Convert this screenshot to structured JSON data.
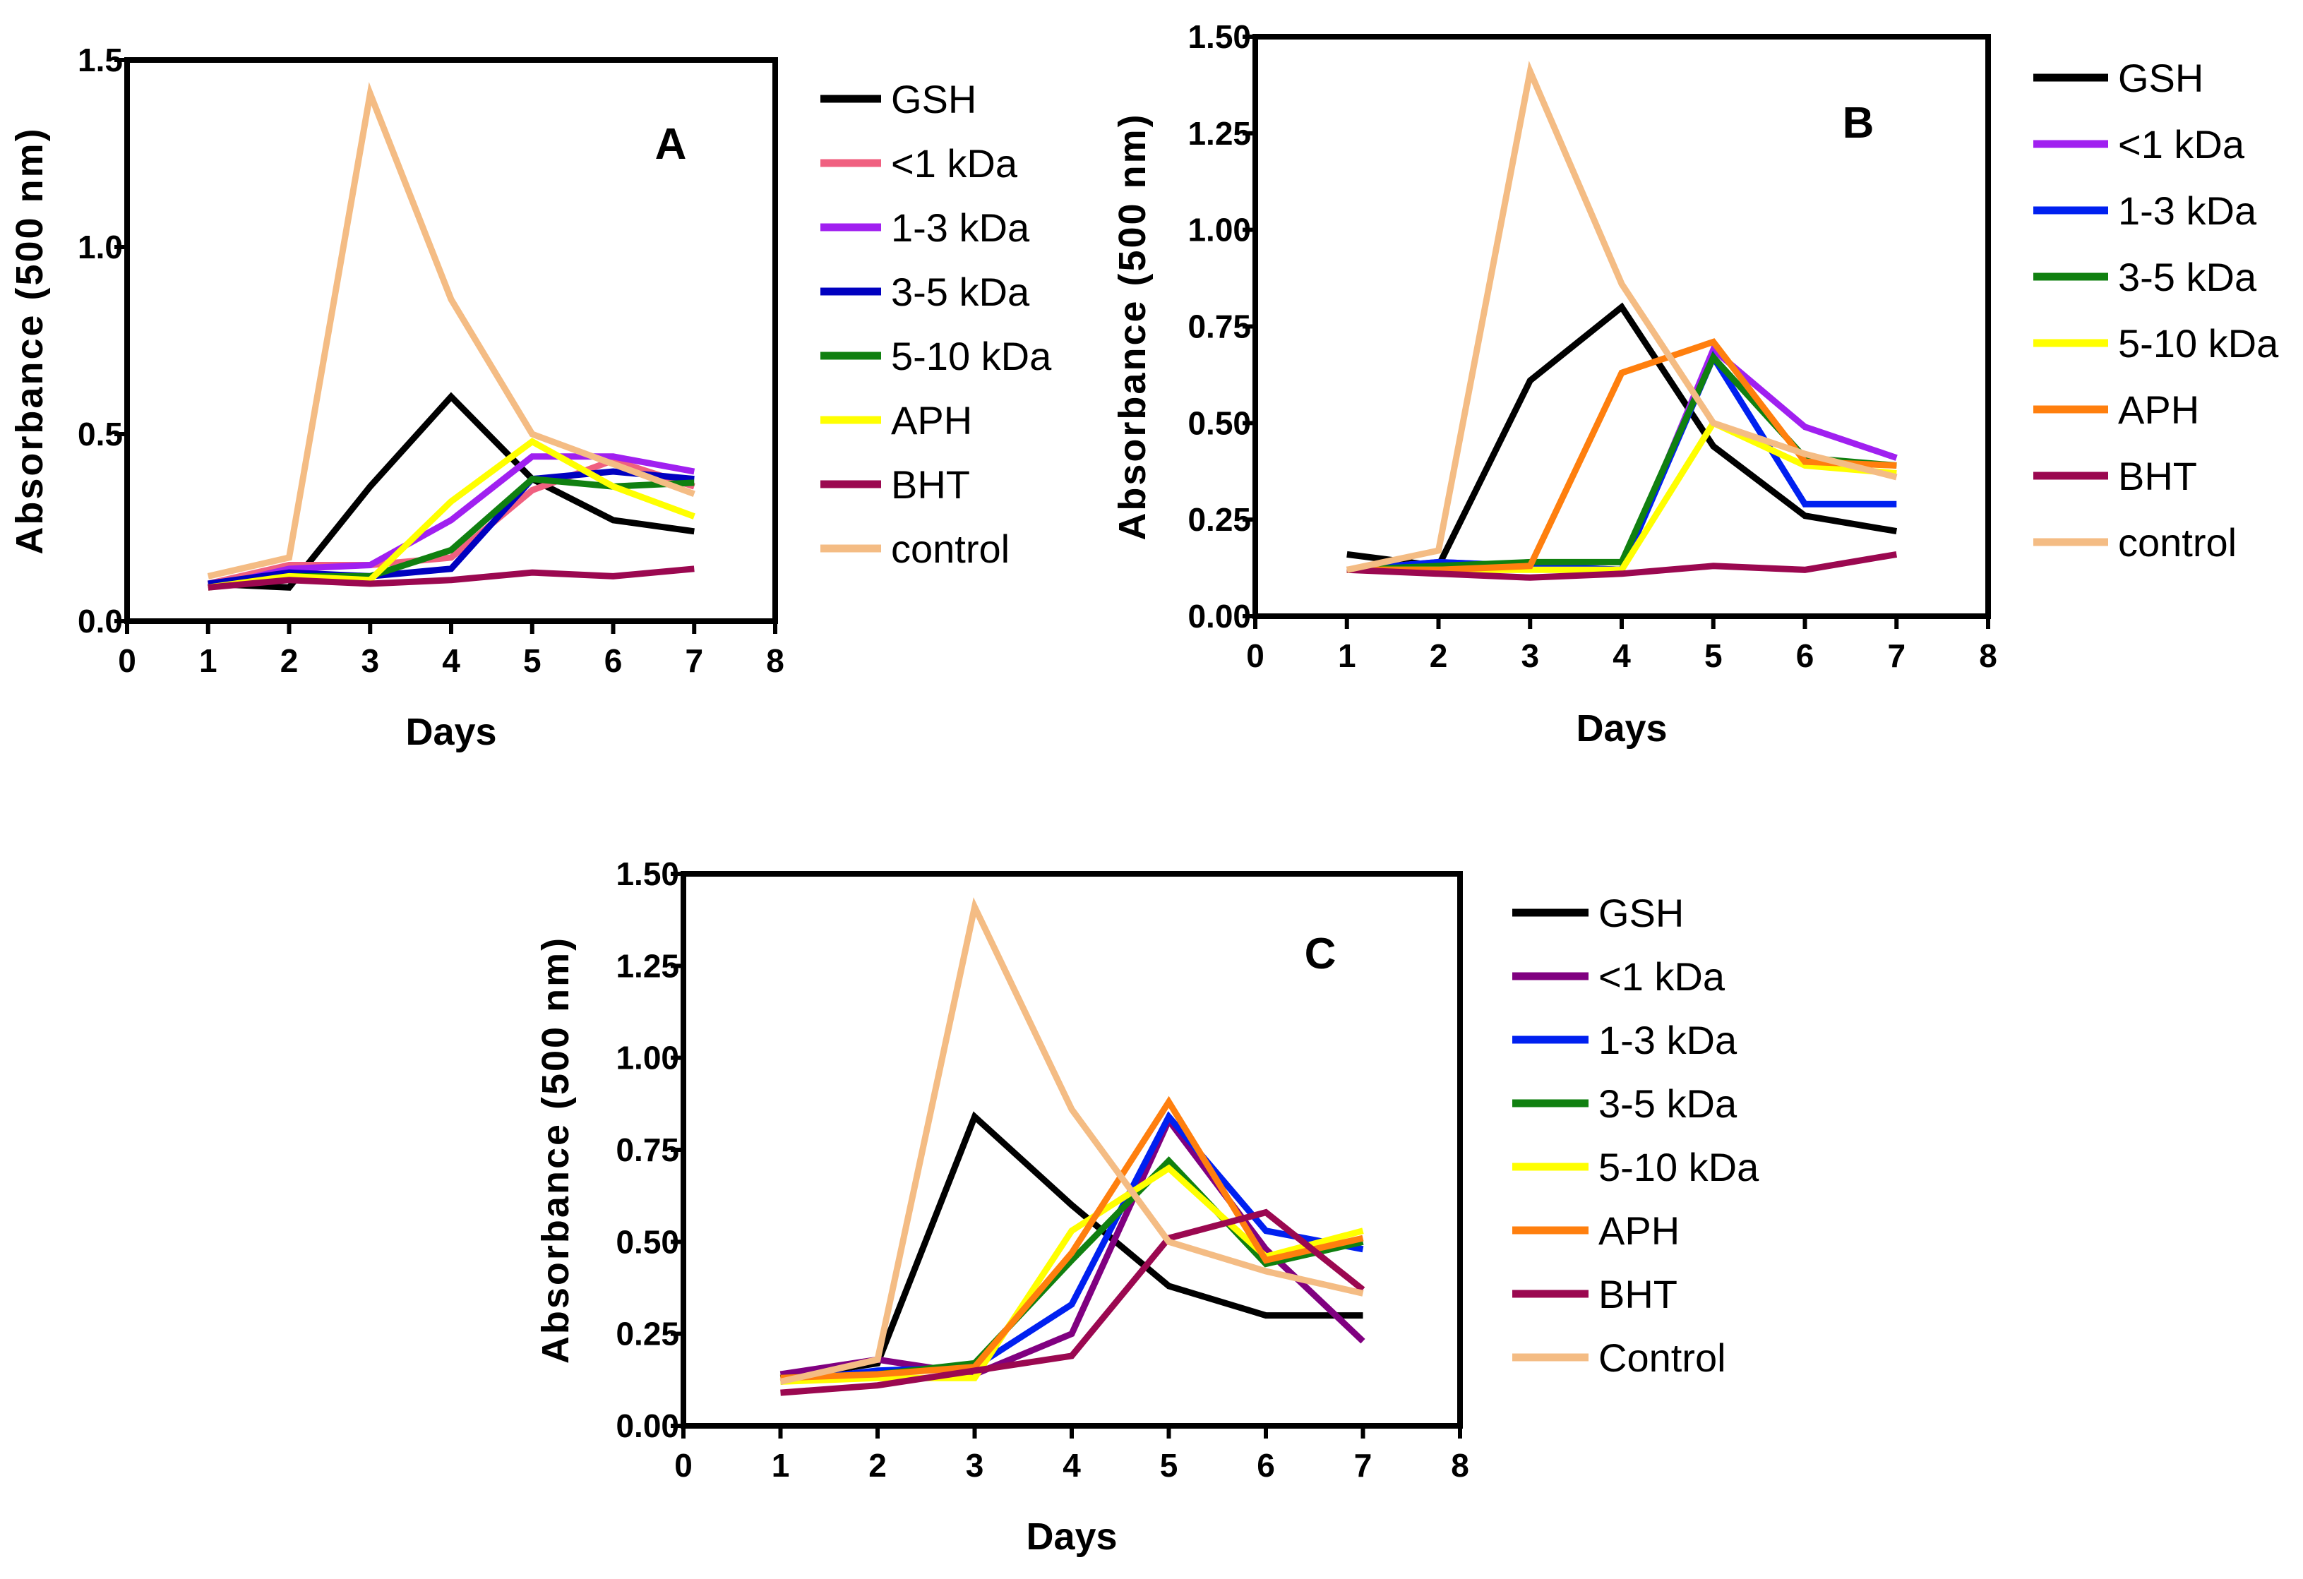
{
  "chart_data": [
    {
      "type": "line",
      "panel": "A",
      "xlabel": "Days",
      "ylabel": "Absorbance (500 nm)",
      "xlim": [
        0,
        8
      ],
      "ylim": [
        0,
        1.5
      ],
      "x_ticks": [
        "0",
        "1",
        "2",
        "3",
        "4",
        "5",
        "6",
        "7",
        "8"
      ],
      "y_ticks": [
        {
          "value": 0.0,
          "label": "0.0"
        },
        {
          "value": 0.5,
          "label": "0.5"
        },
        {
          "value": 1.0,
          "label": "1.0"
        },
        {
          "value": 1.5,
          "label": "1.5"
        }
      ],
      "x": [
        1,
        2,
        3,
        4,
        5,
        6,
        7
      ],
      "legend_position": "right",
      "series": [
        {
          "name": "GSH",
          "color": "#000000",
          "values": [
            0.1,
            0.09,
            0.36,
            0.6,
            0.38,
            0.27,
            0.24
          ]
        },
        {
          "name": "<1 kDa",
          "color": "#F06080",
          "values": [
            0.1,
            0.15,
            0.15,
            0.17,
            0.35,
            0.43,
            0.36
          ]
        },
        {
          "name": "1-3 kDa",
          "color": "#A020F0",
          "values": [
            0.09,
            0.14,
            0.15,
            0.27,
            0.44,
            0.44,
            0.4
          ]
        },
        {
          "name": "3-5 kDa",
          "color": "#0000C0",
          "values": [
            0.1,
            0.13,
            0.12,
            0.14,
            0.38,
            0.4,
            0.38
          ]
        },
        {
          "name": "5-10 kDa",
          "color": "#108010",
          "values": [
            0.09,
            0.12,
            0.12,
            0.19,
            0.38,
            0.36,
            0.37
          ]
        },
        {
          "name": "APH",
          "color": "#FFFF00",
          "values": [
            0.09,
            0.12,
            0.11,
            0.32,
            0.48,
            0.36,
            0.28
          ]
        },
        {
          "name": "BHT",
          "color": "#9B0850",
          "values": [
            0.09,
            0.11,
            0.1,
            0.11,
            0.13,
            0.12,
            0.14
          ]
        },
        {
          "name": "control",
          "color": "#F4BC84",
          "values": [
            0.12,
            0.17,
            1.41,
            0.86,
            0.5,
            0.42,
            0.34
          ]
        }
      ]
    },
    {
      "type": "line",
      "panel": "B",
      "xlabel": "Days",
      "ylabel": "Absorbance (500 nm)",
      "xlim": [
        0,
        8
      ],
      "ylim": [
        0,
        1.5
      ],
      "x_ticks": [
        "0",
        "1",
        "2",
        "3",
        "4",
        "5",
        "6",
        "7",
        "8"
      ],
      "y_ticks": [
        {
          "value": 0.0,
          "label": "0.00"
        },
        {
          "value": 0.25,
          "label": "0.25"
        },
        {
          "value": 0.5,
          "label": "0.50"
        },
        {
          "value": 0.75,
          "label": "0.75"
        },
        {
          "value": 1.0,
          "label": "1.00"
        },
        {
          "value": 1.25,
          "label": "1.25"
        },
        {
          "value": 1.5,
          "label": "1.50"
        }
      ],
      "x": [
        1,
        2,
        3,
        4,
        5,
        6,
        7
      ],
      "legend_position": "right",
      "series": [
        {
          "name": "GSH",
          "color": "#000000",
          "values": [
            0.16,
            0.13,
            0.61,
            0.8,
            0.44,
            0.26,
            0.22
          ]
        },
        {
          "name": "<1 kDa",
          "color": "#A020F0",
          "values": [
            0.12,
            0.14,
            0.13,
            0.12,
            0.69,
            0.49,
            0.41
          ]
        },
        {
          "name": "1-3 kDa",
          "color": "#0020F0",
          "values": [
            0.12,
            0.14,
            0.13,
            0.12,
            0.67,
            0.29,
            0.29
          ]
        },
        {
          "name": "3-5 kDa",
          "color": "#108010",
          "values": [
            0.12,
            0.13,
            0.14,
            0.14,
            0.67,
            0.41,
            0.39
          ]
        },
        {
          "name": "5-10 kDa",
          "color": "#FFFF00",
          "values": [
            0.12,
            0.12,
            0.12,
            0.12,
            0.5,
            0.39,
            0.37
          ]
        },
        {
          "name": "APH",
          "color": "#FF7F0E",
          "values": [
            0.12,
            0.12,
            0.13,
            0.63,
            0.71,
            0.4,
            0.39
          ]
        },
        {
          "name": "BHT",
          "color": "#9B0850",
          "values": [
            0.12,
            0.11,
            0.1,
            0.11,
            0.13,
            0.12,
            0.16
          ]
        },
        {
          "name": "control",
          "color": "#F4BC84",
          "values": [
            0.12,
            0.17,
            1.41,
            0.86,
            0.5,
            0.42,
            0.36
          ]
        }
      ]
    },
    {
      "type": "line",
      "panel": "C",
      "xlabel": "Days",
      "ylabel": "Absorbance (500 nm)",
      "xlim": [
        0,
        8
      ],
      "ylim": [
        0,
        1.5
      ],
      "x_ticks": [
        "0",
        "1",
        "2",
        "3",
        "4",
        "5",
        "6",
        "7",
        "8"
      ],
      "y_ticks": [
        {
          "value": 0.0,
          "label": "0.00"
        },
        {
          "value": 0.25,
          "label": "0.25"
        },
        {
          "value": 0.5,
          "label": "0.50"
        },
        {
          "value": 0.75,
          "label": "0.75"
        },
        {
          "value": 1.0,
          "label": "1.00"
        },
        {
          "value": 1.25,
          "label": "1.25"
        },
        {
          "value": 1.5,
          "label": "1.50"
        }
      ],
      "x": [
        1,
        2,
        3,
        4,
        5,
        6,
        7
      ],
      "legend_position": "right",
      "series": [
        {
          "name": "GSH",
          "color": "#000000",
          "values": [
            0.13,
            0.17,
            0.84,
            0.6,
            0.38,
            0.3,
            0.3
          ]
        },
        {
          "name": "<1 kDa",
          "color": "#800080",
          "values": [
            0.14,
            0.18,
            0.14,
            0.25,
            0.83,
            0.48,
            0.23
          ]
        },
        {
          "name": "1-3 kDa",
          "color": "#0020F0",
          "values": [
            0.12,
            0.15,
            0.16,
            0.33,
            0.84,
            0.53,
            0.48
          ]
        },
        {
          "name": "3-5 kDa",
          "color": "#108010",
          "values": [
            0.13,
            0.14,
            0.17,
            0.45,
            0.72,
            0.44,
            0.5
          ]
        },
        {
          "name": "5-10 kDa",
          "color": "#FFFF00",
          "values": [
            0.12,
            0.13,
            0.13,
            0.53,
            0.7,
            0.46,
            0.53
          ]
        },
        {
          "name": "APH",
          "color": "#FF7F0E",
          "values": [
            0.13,
            0.14,
            0.16,
            0.47,
            0.88,
            0.45,
            0.51
          ]
        },
        {
          "name": "BHT",
          "color": "#9B0850",
          "values": [
            0.09,
            0.11,
            0.15,
            0.19,
            0.51,
            0.58,
            0.37
          ]
        },
        {
          "name": "Control",
          "color": "#F4BC84",
          "values": [
            0.12,
            0.18,
            1.41,
            0.86,
            0.5,
            0.42,
            0.36
          ]
        }
      ]
    }
  ]
}
